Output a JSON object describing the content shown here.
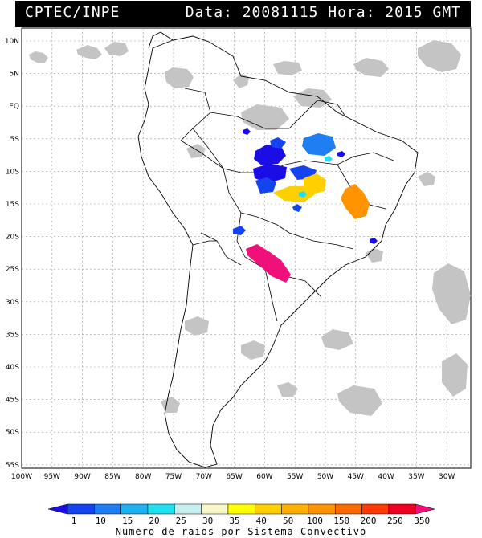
{
  "header": {
    "source": "CPTEC/INPE",
    "date_label": "Data:",
    "date": "20081115",
    "hour_label": "Hora:",
    "hour": "2015 GMT"
  },
  "axes": {
    "lat_labels": [
      "10N",
      "5N",
      "EQ",
      "5S",
      "10S",
      "15S",
      "20S",
      "25S",
      "30S",
      "35S",
      "40S",
      "45S",
      "50S",
      "55S"
    ],
    "lon_labels": [
      "100W",
      "95W",
      "90W",
      "85W",
      "80W",
      "75W",
      "70W",
      "65W",
      "60W",
      "55W",
      "50W",
      "45W",
      "40W",
      "35W",
      "30W"
    ]
  },
  "colorbar": {
    "title": "Numero de raios por Sistema Convectivo",
    "ticks": [
      "1",
      "10",
      "15",
      "20",
      "25",
      "30",
      "35",
      "40",
      "50",
      "100",
      "150",
      "200",
      "250",
      "350"
    ],
    "colors": [
      "#1a0de6",
      "#1443f0",
      "#1f7ef2",
      "#1fb0f2",
      "#20e0f0",
      "#c8f0f0",
      "#f8f8c8",
      "#ffff00",
      "#ffd000",
      "#ffb000",
      "#ff9400",
      "#ff6a00",
      "#ff3a00",
      "#f00020",
      "#f0107a"
    ]
  },
  "regions": {
    "cloud_color": "#c4c4c4",
    "coast_color": "#000000"
  }
}
